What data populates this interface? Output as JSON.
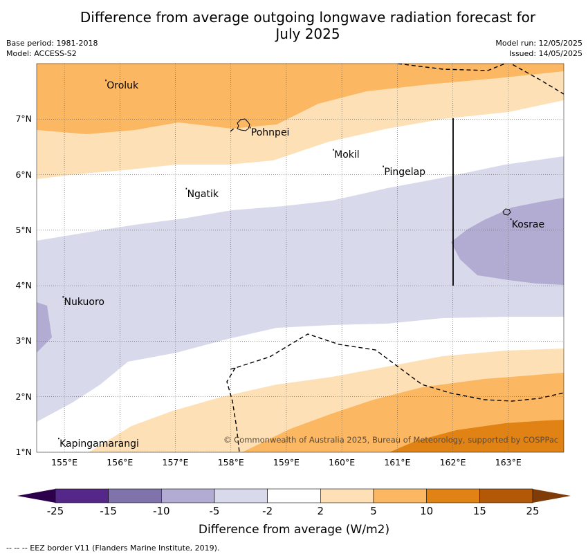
{
  "header": {
    "title_line1": "Difference from average outgoing longwave radiation forecast for",
    "title_line2": "July 2025",
    "base_period": "Base period: 1981-2018",
    "model": "Model: ACCESS-S2",
    "model_run": "Model run: 12/05/2025",
    "issued": "Issued: 14/05/2025"
  },
  "map": {
    "extent": {
      "lon": [
        154.5,
        164.0
      ],
      "lat": [
        1.0,
        8.0
      ]
    },
    "lat_ticks": [
      {
        "value": 7,
        "label": "7°N"
      },
      {
        "value": 6,
        "label": "6°N"
      },
      {
        "value": 5,
        "label": "5°N"
      },
      {
        "value": 4,
        "label": "4°N"
      },
      {
        "value": 3,
        "label": "3°N"
      },
      {
        "value": 2,
        "label": "2°N"
      },
      {
        "value": 1,
        "label": "1°N"
      }
    ],
    "lon_ticks": [
      {
        "value": 155,
        "label": "155°E"
      },
      {
        "value": 156,
        "label": "156°E"
      },
      {
        "value": 157,
        "label": "157°E"
      },
      {
        "value": 158,
        "label": "158°E"
      },
      {
        "value": 159,
        "label": "159°E"
      },
      {
        "value": 160,
        "label": "160°E"
      },
      {
        "value": 161,
        "label": "161°E"
      },
      {
        "value": 162,
        "label": "162°E"
      },
      {
        "value": 163,
        "label": "163°E"
      }
    ],
    "places": [
      {
        "name": "Oroluk",
        "lon": 155.75,
        "lat": 7.6
      },
      {
        "name": "Pohnpei",
        "lon": 158.35,
        "lat": 6.75
      },
      {
        "name": "Mokil",
        "lon": 159.85,
        "lat": 6.35
      },
      {
        "name": "Pingelap",
        "lon": 160.75,
        "lat": 6.05
      },
      {
        "name": "Ngatik",
        "lon": 157.2,
        "lat": 5.65
      },
      {
        "name": "Kosrae",
        "lon": 163.05,
        "lat": 5.1
      },
      {
        "name": "Nukuoro",
        "lon": 154.98,
        "lat": 3.7
      },
      {
        "name": "Kapingamarangi",
        "lon": 154.9,
        "lat": 1.15
      }
    ],
    "copyright": "© Commonwealth of Australia 2025, Bureau of Meteorology, supported by COSPPac"
  },
  "colorbar": {
    "title": "Difference from average (W/m2)",
    "labels": [
      "-25",
      "-15",
      "-10",
      "-5",
      "-2",
      "2",
      "5",
      "10",
      "15",
      "25"
    ],
    "colors": [
      "#542788",
      "#8073ac",
      "#b2abd2",
      "#d8daeb",
      "#ffffff",
      "#fee0b6",
      "#fbb761",
      "#e08214",
      "#b35806"
    ],
    "extend_min_color": "#2d004b",
    "extend_max_color": "#7f3b08"
  },
  "footer": {
    "legend_text": "--  --  -- EEZ border V11 (Flanders Marine Institute, 2019)."
  }
}
